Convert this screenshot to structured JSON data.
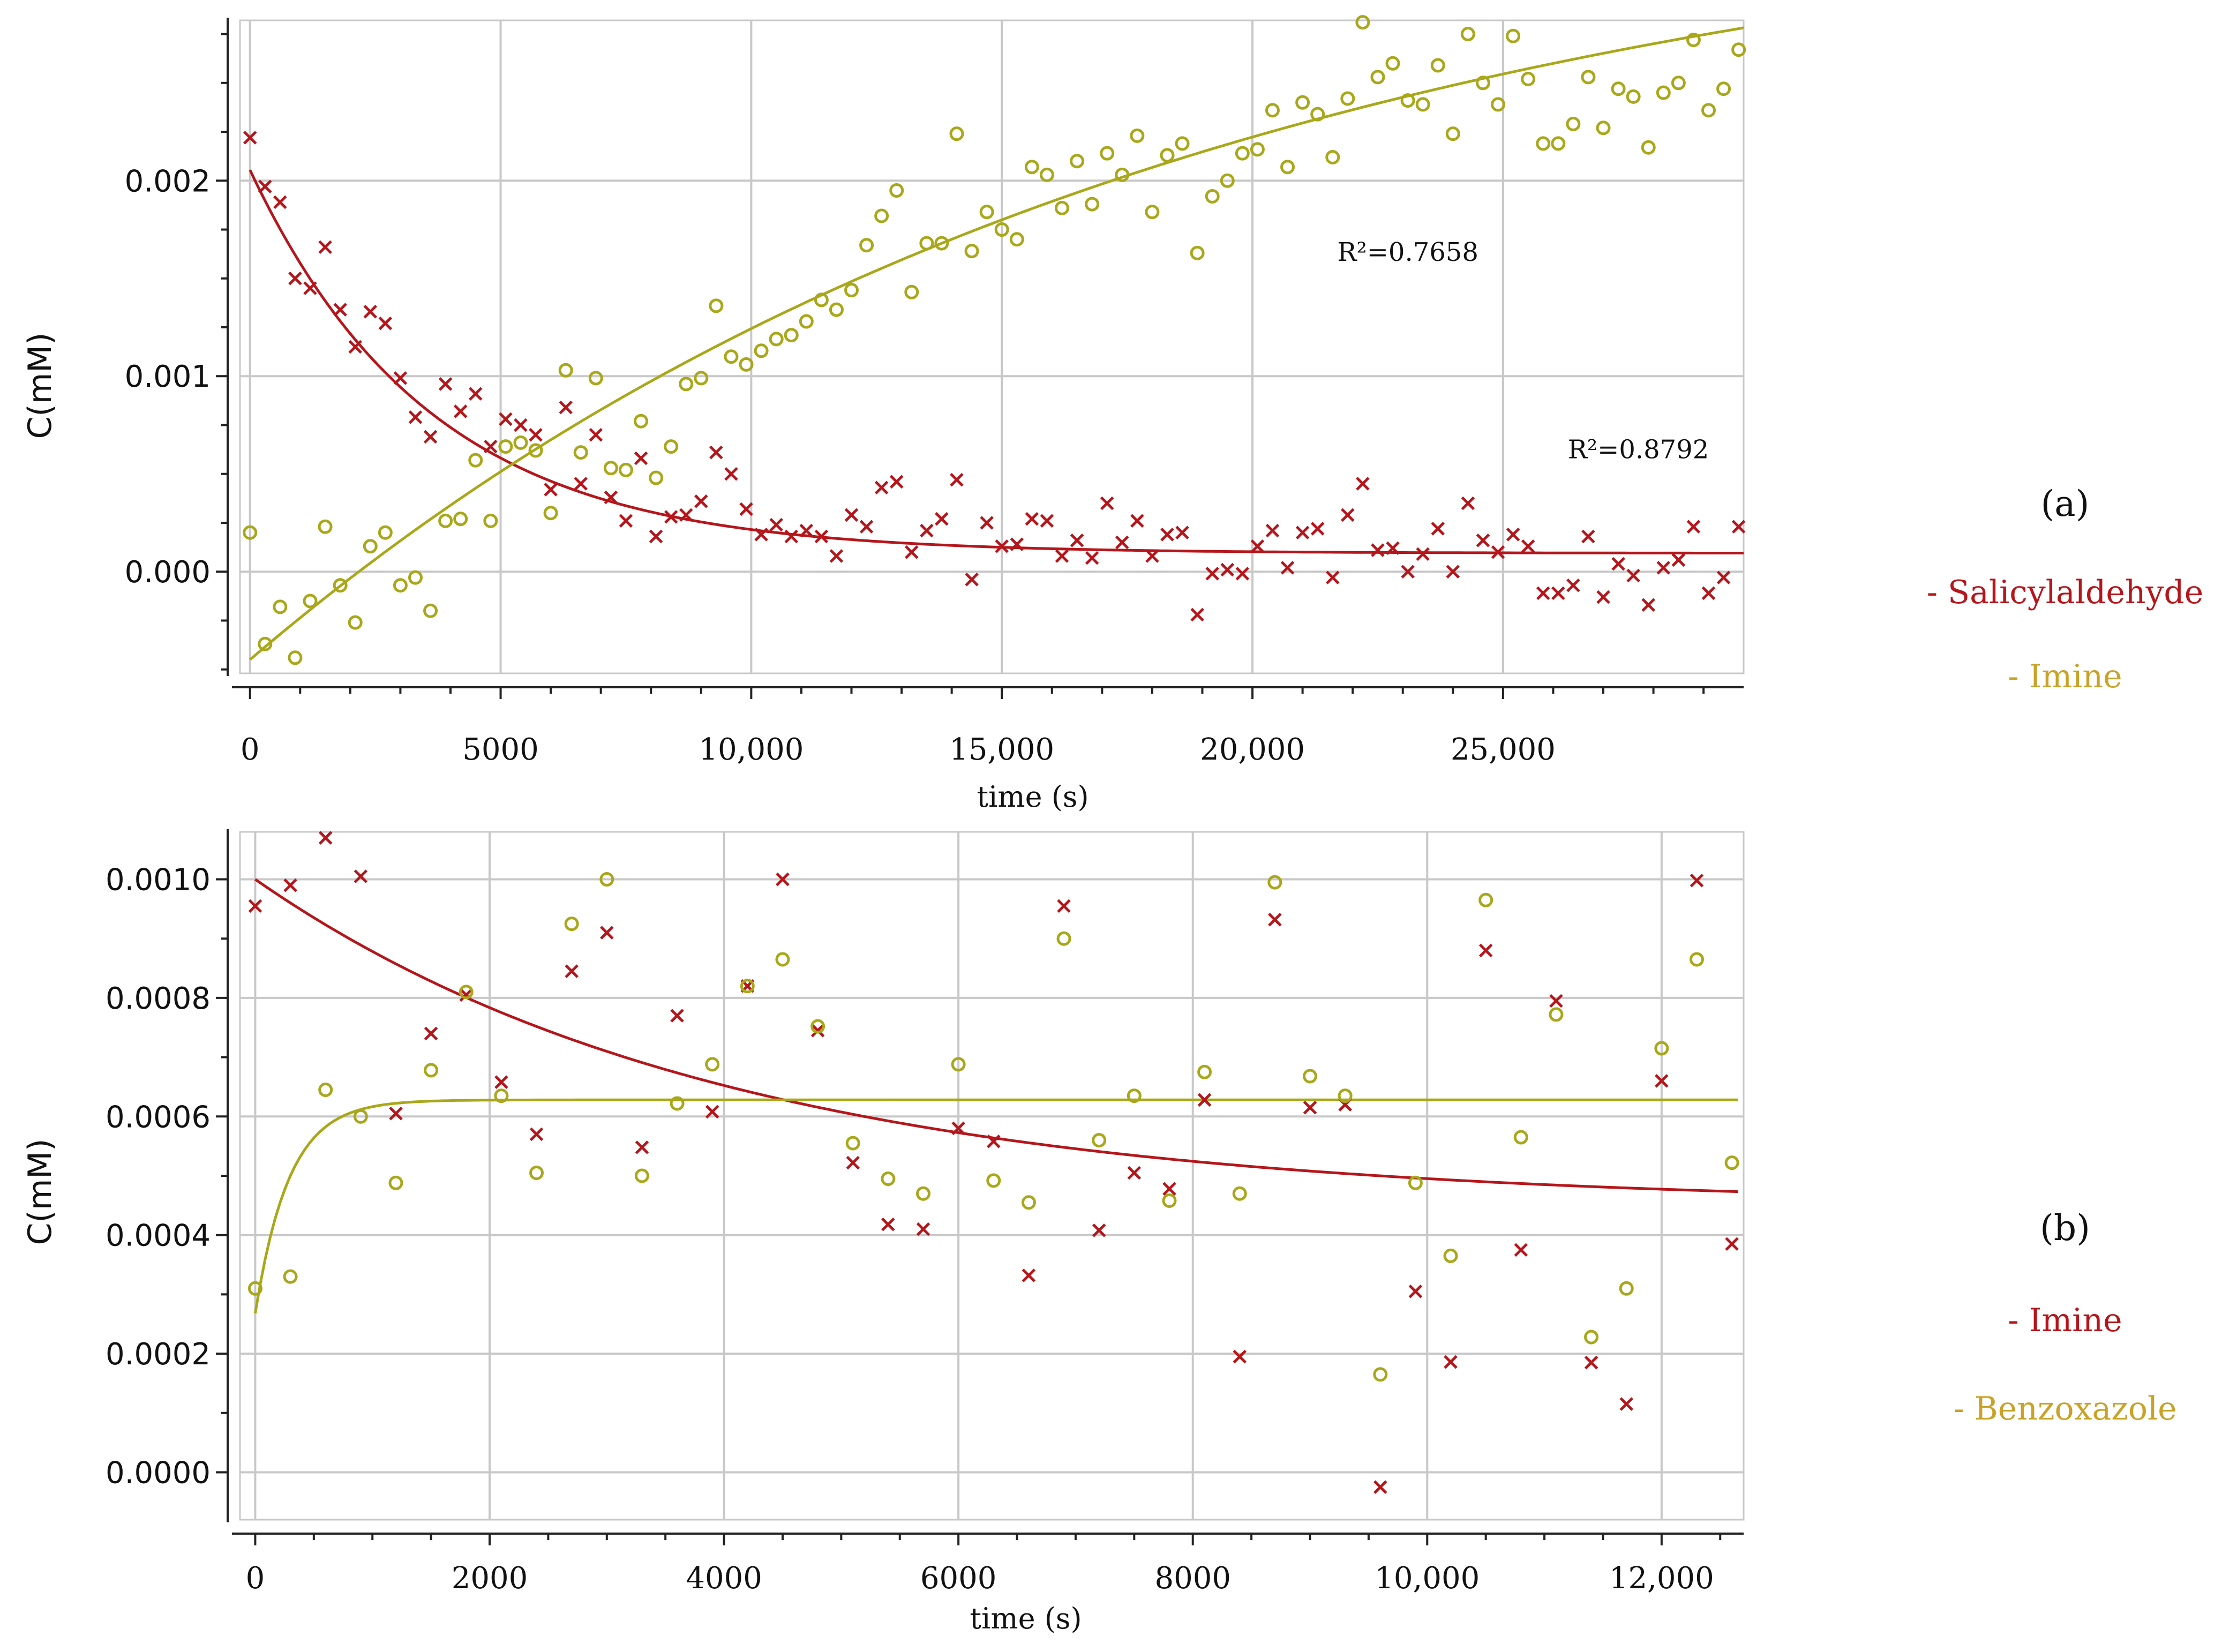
{
  "colors": {
    "salicylaldehyde": "#b5161b",
    "imine_a": "#a8a81a",
    "legend_imine_a": "#c9a227",
    "imine_b": "#b5161b",
    "benzoxazole": "#a8a81a",
    "legend_benzoxazole": "#c9a227",
    "grid": "#c8c8c8",
    "axis": "#222222"
  },
  "chart_data": [
    {
      "type": "scatter",
      "panel": "(a)",
      "xlabel": "time (s)",
      "ylabel": "C(mM)",
      "xlim": [
        -200,
        29800
      ],
      "ylim": [
        -0.00052,
        0.00282
      ],
      "xticks": [
        0,
        5000,
        10000,
        15000,
        20000,
        25000
      ],
      "xtick_labels": [
        "0",
        "5000",
        "10,000",
        "15,000",
        "20,000",
        "25,000"
      ],
      "yticks": [
        0.0,
        0.001,
        0.002
      ],
      "ytick_labels": [
        "0.000",
        "0.001",
        "0.002"
      ],
      "legend": [
        "- Salicylaldehyde",
        "- Imine"
      ],
      "annotations": [
        {
          "text": "R²=0.7658",
          "x": 23100,
          "y": 0.00159
        },
        {
          "text": "R²=0.8792",
          "x": 27700,
          "y": 0.00058
        }
      ],
      "series": [
        {
          "name": "Salicylaldehyde",
          "marker": "x",
          "color_key": "salicylaldehyde",
          "x": [
            0,
            300,
            600,
            900,
            1200,
            1500,
            1800,
            2100,
            2400,
            2700,
            3000,
            3300,
            3600,
            3900,
            4200,
            4500,
            4800,
            5100,
            5400,
            5700,
            6000,
            6300,
            6600,
            6900,
            7200,
            7500,
            7800,
            8100,
            8400,
            8700,
            9000,
            9300,
            9600,
            9900,
            10200,
            10500,
            10800,
            11100,
            11400,
            11700,
            12000,
            12300,
            12600,
            12900,
            13200,
            13500,
            13800,
            14100,
            14400,
            14700,
            15000,
            15300,
            15600,
            15900,
            16200,
            16500,
            16800,
            17100,
            17400,
            17700,
            18000,
            18300,
            18600,
            18900,
            19200,
            19500,
            19800,
            20100,
            20400,
            20700,
            21000,
            21300,
            21600,
            21900,
            22200,
            22500,
            22800,
            23100,
            23400,
            23700,
            24000,
            24300,
            24600,
            24900,
            25200,
            25500,
            25800,
            26100,
            26400,
            26700,
            27000,
            27300,
            27600,
            27900,
            28200,
            28500,
            28800,
            29100,
            29400,
            29700
          ],
          "y": [
            0.00222,
            0.00197,
            0.00189,
            0.0015,
            0.00145,
            0.00166,
            0.00134,
            0.00115,
            0.00133,
            0.00127,
            0.00099,
            0.00079,
            0.00069,
            0.00096,
            0.00082,
            0.00091,
            0.00064,
            0.00078,
            0.00075,
            0.0007,
            0.00042,
            0.00084,
            0.00045,
            0.0007,
            0.00038,
            0.00026,
            0.00058,
            0.00018,
            0.00028,
            0.00029,
            0.00036,
            0.00061,
            0.0005,
            0.00032,
            0.00019,
            0.00024,
            0.00018,
            0.00021,
            0.00018,
            8e-05,
            0.00029,
            0.00023,
            0.00043,
            0.00046,
            0.0001,
            0.00021,
            0.00027,
            0.00047,
            -4e-05,
            0.00025,
            0.00013,
            0.00014,
            0.00027,
            0.00026,
            8e-05,
            0.00016,
            7e-05,
            0.00035,
            0.00015,
            0.00026,
            8e-05,
            0.00019,
            0.0002,
            -0.00022,
            -1e-05,
            1e-05,
            -1e-05,
            0.00013,
            0.00021,
            2e-05,
            0.0002,
            0.00022,
            -3e-05,
            0.00029,
            0.00045,
            0.00011,
            0.00012,
            0.0,
            9e-05,
            0.00022,
            0.0,
            0.00035,
            0.00016,
            0.0001,
            0.00019,
            0.00013,
            -0.00011,
            -0.00011,
            -7e-05,
            0.00018,
            -0.00013,
            4e-05,
            -2e-05,
            -0.00017,
            2e-05,
            6e-05,
            0.00023,
            -0.00011,
            -3e-05,
            0.00023
          ]
        },
        {
          "name": "Imine",
          "marker": "o",
          "color_key": "imine_a",
          "x": [
            0,
            300,
            600,
            900,
            1200,
            1500,
            1800,
            2100,
            2400,
            2700,
            3000,
            3300,
            3600,
            3900,
            4200,
            4500,
            4800,
            5100,
            5400,
            5700,
            6000,
            6300,
            6600,
            6900,
            7200,
            7500,
            7800,
            8100,
            8400,
            8700,
            9000,
            9300,
            9600,
            9900,
            10200,
            10500,
            10800,
            11100,
            11400,
            11700,
            12000,
            12300,
            12600,
            12900,
            13200,
            13500,
            13800,
            14100,
            14400,
            14700,
            15000,
            15300,
            15600,
            15900,
            16200,
            16500,
            16800,
            17100,
            17400,
            17700,
            18000,
            18300,
            18600,
            18900,
            19200,
            19500,
            19800,
            20100,
            20400,
            20700,
            21000,
            21300,
            21600,
            21900,
            22200,
            22500,
            22800,
            23100,
            23400,
            23700,
            24000,
            24300,
            24600,
            24900,
            25200,
            25500,
            25800,
            26100,
            26400,
            26700,
            27000,
            27300,
            27600,
            27900,
            28200,
            28500,
            28800,
            29100,
            29400,
            29700
          ],
          "y": [
            0.0002,
            -0.00037,
            -0.00018,
            -0.00044,
            -0.00015,
            0.00023,
            -7e-05,
            -0.00026,
            0.00013,
            0.0002,
            -7e-05,
            -3e-05,
            -0.0002,
            0.00026,
            0.00027,
            0.00057,
            0.00026,
            0.00064,
            0.00066,
            0.00062,
            0.0003,
            0.00103,
            0.00061,
            0.00099,
            0.00053,
            0.00052,
            0.00077,
            0.00048,
            0.00064,
            0.00096,
            0.00099,
            0.00136,
            0.0011,
            0.00106,
            0.00113,
            0.00119,
            0.00121,
            0.00128,
            0.00139,
            0.00134,
            0.00144,
            0.00167,
            0.00182,
            0.00195,
            0.00143,
            0.00168,
            0.00168,
            0.00224,
            0.00164,
            0.00184,
            0.00175,
            0.0017,
            0.00207,
            0.00203,
            0.00186,
            0.0021,
            0.00188,
            0.00214,
            0.00203,
            0.00223,
            0.00184,
            0.00213,
            0.00219,
            0.00163,
            0.00192,
            0.002,
            0.00214,
            0.00216,
            0.00236,
            0.00207,
            0.0024,
            0.00234,
            0.00212,
            0.00242,
            0.00281,
            0.00253,
            0.0026,
            0.00241,
            0.00239,
            0.00259,
            0.00224,
            0.00275,
            0.0025,
            0.00239,
            0.00274,
            0.00252,
            0.00219,
            0.00219,
            0.00229,
            0.00253,
            0.00227,
            0.00247,
            0.00243,
            0.00217,
            0.00245,
            0.0025,
            0.00272,
            0.00236,
            0.00247,
            0.00267
          ]
        }
      ],
      "fits": [
        {
          "name": "Salicylaldehyde fit",
          "model": "y = 0.0000946 + 0.00196*exp(-x/3590)",
          "color_key": "salicylaldehyde",
          "x_range": [
            0,
            29800
          ]
        },
        {
          "name": "Imine fit",
          "model": "y = -0.00045 + 0.00402*(1-exp(-x/18290))",
          "color_key": "imine_a",
          "x_range": [
            0,
            29800
          ]
        }
      ]
    },
    {
      "type": "scatter",
      "panel": "(b)",
      "xlabel": "time (s)",
      "ylabel": "C(mM)",
      "xlim": [
        -130,
        12700
      ],
      "ylim": [
        -8e-05,
        0.00108
      ],
      "xticks": [
        0,
        2000,
        4000,
        6000,
        8000,
        10000,
        12000
      ],
      "xtick_labels": [
        "0",
        "2000",
        "4000",
        "6000",
        "8000",
        "10,000",
        "12,000"
      ],
      "yticks": [
        0.0,
        0.0002,
        0.0004,
        0.0006,
        0.0008,
        0.001
      ],
      "ytick_labels": [
        "0.0000",
        "0.0002",
        "0.0004",
        "0.0006",
        "0.0008",
        "0.0010"
      ],
      "legend": [
        "- Imine",
        "- Benzoxazole"
      ],
      "series": [
        {
          "name": "Imine",
          "marker": "x",
          "color_key": "imine_b",
          "x": [
            0,
            300,
            600,
            900,
            1200,
            1500,
            1800,
            2100,
            2400,
            2700,
            3000,
            3300,
            3600,
            3900,
            4200,
            4500,
            4800,
            5100,
            5400,
            5700,
            6000,
            6300,
            6600,
            6900,
            7200,
            7500,
            7800,
            8100,
            8400,
            8700,
            9000,
            9300,
            9600,
            9900,
            10200,
            10500,
            10800,
            11100,
            11400,
            11700,
            12000,
            12300,
            12600
          ],
          "y": [
            0.000955,
            0.00099,
            0.00107,
            0.001005,
            0.000605,
            0.00074,
            0.000805,
            0.000658,
            0.00057,
            0.000845,
            0.00091,
            0.000548,
            0.00077,
            0.000608,
            0.00082,
            0.001,
            0.000745,
            0.000522,
            0.000418,
            0.00041,
            0.00058,
            0.000558,
            0.000332,
            0.000955,
            0.000408,
            0.000505,
            0.000478,
            0.000628,
            0.000195,
            0.000932,
            0.000615,
            0.00062,
            -2.5e-05,
            0.000305,
            0.000186,
            0.00088,
            0.000375,
            0.000795,
            0.000185,
            0.000115,
            0.00066,
            0.000998,
            0.000385
          ]
        },
        {
          "name": "Benzoxazole",
          "marker": "o",
          "color_key": "benzoxazole",
          "x": [
            0,
            300,
            600,
            900,
            1200,
            1500,
            1800,
            2100,
            2400,
            2700,
            3000,
            3300,
            3600,
            3900,
            4200,
            4500,
            4800,
            5100,
            5400,
            5700,
            6000,
            6300,
            6600,
            6900,
            7200,
            7500,
            7800,
            8100,
            8400,
            8700,
            9000,
            9300,
            9600,
            9900,
            10200,
            10500,
            10800,
            11100,
            11400,
            11700,
            12000,
            12300,
            12600
          ],
          "y": [
            0.00031,
            0.00033,
            0.000645,
            0.0006,
            0.000488,
            0.000678,
            0.00081,
            0.000635,
            0.000505,
            0.000925,
            0.001,
            0.0005,
            0.000622,
            0.000688,
            0.00082,
            0.000865,
            0.000752,
            0.000555,
            0.000495,
            0.00047,
            0.000688,
            0.000492,
            0.000455,
            0.0009,
            0.00056,
            0.000635,
            0.000458,
            0.000675,
            0.00047,
            0.000995,
            0.000668,
            0.000635,
            0.000165,
            0.000488,
            0.000365,
            0.000965,
            0.000565,
            0.000772,
            0.000228,
            0.00031,
            0.000715,
            0.000865,
            0.000522
          ]
        }
      ],
      "fits": [
        {
          "name": "Imine fit",
          "model": "y = 0.00045 + 0.00055*exp(-x/4000)",
          "color_key": "imine_b",
          "x_range": [
            0,
            12650
          ]
        },
        {
          "name": "Benzoxazole fit",
          "model": "y = 0.000628 - 0.00036*exp(-x/290)",
          "color_key": "benzoxazole",
          "x_range": [
            0,
            12650
          ]
        }
      ]
    }
  ]
}
